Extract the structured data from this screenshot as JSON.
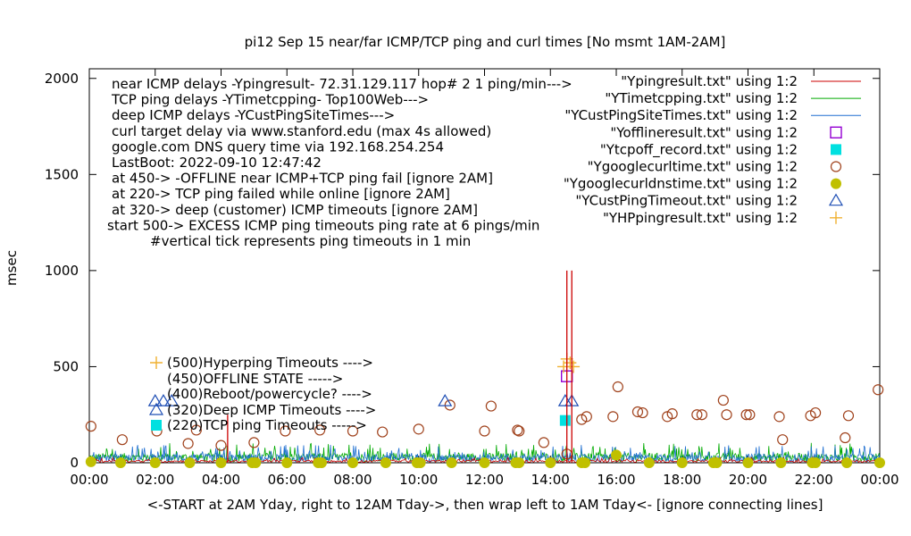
{
  "chart_data": {
    "type": "line",
    "title": "pi12 Sep 15  near/far ICMP/TCP ping and curl times [No msmt 1AM-2AM]",
    "ylabel": "msec",
    "xlabel": "<-START at 2AM Yday, right to 12AM Tday->, then wrap left to 1AM Tday<- [ignore connecting lines]",
    "xlim": [
      0,
      24
    ],
    "ylim": [
      0,
      2050
    ],
    "x_ticks": [
      "00:00",
      "02:00",
      "04:00",
      "06:00",
      "08:00",
      "10:00",
      "12:00",
      "14:00",
      "16:00",
      "18:00",
      "20:00",
      "22:00",
      "00:00"
    ],
    "y_ticks": [
      0,
      500,
      1000,
      1500,
      2000
    ],
    "notes": [
      "near ICMP delays -Ypingresult- 72.31.129.117 hop# 2  1 ping/min--->",
      "TCP ping delays -YTimetcpping- Top100Web--->",
      "deep ICMP delays -YCustPingSiteTimes--->",
      "curl target delay via www.stanford.edu (max 4s allowed)",
      "google.com DNS query time via 192.168.254.254",
      "LastBoot: 2022-09-10 12:47:42",
      "at 450-> -OFFLINE near ICMP+TCP ping fail [ignore 2AM]",
      "at 220-> TCP ping failed while online [ignore 2AM]",
      "at 320-> deep (customer) ICMP timeouts [ignore 2AM]",
      "start 500-> EXCESS ICMP ping timeouts ping rate at 6 pings/min",
      "#vertical tick represents ping timeouts in 1 min"
    ],
    "level_labels": [
      {
        "text": "(500)Hyperping Timeouts ---->",
        "series": "YHPpingresult.txt"
      },
      {
        "text": "(450)OFFLINE STATE ----->",
        "series": ""
      },
      {
        "text": "(400)Reboot/powercycle? ---->",
        "series": ""
      },
      {
        "text": "(320)Deep ICMP Timeouts ---->",
        "series": "YCustPingTimeout.txt"
      },
      {
        "text": "(220)TCP ping Timeouts ----->",
        "series": "Ytcpoff_record.txt"
      }
    ],
    "legend_position": "top-right",
    "legend": [
      {
        "label": "\"Ypingresult.txt\" using 1:2",
        "style": "line",
        "color": "#cc0000"
      },
      {
        "label": "\"YTimetcpping.txt\" using 1:2",
        "style": "line",
        "color": "#00aa00"
      },
      {
        "label": "\"YCustPingSiteTimes.txt\" using 1:2",
        "style": "line",
        "color": "#1f6fd1"
      },
      {
        "label": "\"Yofflineresult.txt\" using 1:2",
        "style": "open-square",
        "color": "#9400d3"
      },
      {
        "label": "\"Ytcpoff_record.txt\" using 1:2",
        "style": "filled-square",
        "color": "#00e0e0"
      },
      {
        "label": "\"Ygooglecurltime.txt\" using 1:2",
        "style": "open-circle",
        "color": "#a0421c"
      },
      {
        "label": "\"Ygooglecurldnstime.txt\" using 1:2",
        "style": "filled-circle",
        "color": "#c0c000"
      },
      {
        "label": "\"YCustPingTimeout.txt\" using 1:2",
        "style": "open-triangle",
        "color": "#1f4fb5"
      },
      {
        "label": "\"YHPpingresult.txt\" using 1:2",
        "style": "plus",
        "color": "#f0b030"
      }
    ],
    "series": [
      {
        "name": "Ygooglecurltime.txt",
        "marker": "open-circle",
        "color": "#a0421c",
        "x": [
          0.05,
          1.0,
          2.05,
          3.0,
          3.25,
          4.0,
          5.0,
          5.95,
          7.0,
          8.0,
          8.9,
          10.0,
          10.95,
          12.0,
          12.2,
          13.0,
          13.05,
          13.8,
          14.5,
          14.95,
          15.1,
          15.9,
          16.05,
          16.65,
          16.8,
          17.55,
          17.7,
          18.45,
          18.6,
          19.25,
          19.35,
          19.95,
          20.05,
          20.95,
          21.05,
          21.9,
          22.05,
          22.95,
          23.05,
          23.95
        ],
        "y": [
          190,
          120,
          165,
          100,
          170,
          90,
          105,
          165,
          170,
          165,
          160,
          175,
          300,
          165,
          295,
          170,
          165,
          105,
          45,
          225,
          240,
          240,
          395,
          265,
          260,
          240,
          255,
          250,
          250,
          325,
          250,
          250,
          250,
          240,
          120,
          245,
          260,
          130,
          245,
          380
        ]
      },
      {
        "name": "Ygooglecurldnstime.txt",
        "marker": "filled-circle",
        "color": "#c0c000",
        "x": [
          0.05,
          0.95,
          2.0,
          3.05,
          4.0,
          4.95,
          5.05,
          6.0,
          6.95,
          7.05,
          8.0,
          9.0,
          9.95,
          10.05,
          11.0,
          12.0,
          12.95,
          13.05,
          14.0,
          14.95,
          15.05,
          16.0,
          17.0,
          18.0,
          18.95,
          19.05,
          20.0,
          21.0,
          21.95,
          22.05,
          23.0,
          24.0
        ],
        "y": [
          5,
          0,
          0,
          0,
          0,
          0,
          0,
          0,
          0,
          0,
          0,
          0,
          0,
          0,
          0,
          0,
          0,
          0,
          0,
          0,
          0,
          40,
          0,
          0,
          0,
          0,
          0,
          0,
          0,
          0,
          0,
          0
        ]
      },
      {
        "name": "YCustPingTimeout.txt",
        "marker": "open-triangle",
        "color": "#1f4fb5",
        "x": [
          2.0,
          2.25,
          2.5,
          10.8,
          14.45,
          14.65
        ],
        "y": [
          320,
          320,
          320,
          320,
          320,
          320
        ]
      },
      {
        "name": "Ytcpoff_record.txt",
        "marker": "filled-square",
        "color": "#00e0e0",
        "x": [
          14.45
        ],
        "y": [
          220
        ]
      },
      {
        "name": "Yofflineresult.txt",
        "marker": "open-square",
        "color": "#9400d3",
        "x": [
          14.5
        ],
        "y": [
          450
        ]
      },
      {
        "name": "YHPpingresult.txt",
        "marker": "plus",
        "color": "#f0b030",
        "x": [
          14.4,
          14.5,
          14.6,
          14.7
        ],
        "y": [
          500,
          540,
          520,
          500
        ]
      },
      {
        "name": "Ypingresult.txt",
        "marker": "spikes",
        "color": "#cc0000",
        "x": [
          14.5,
          14.65,
          4.2
        ],
        "y": [
          1000,
          1000,
          250
        ]
      }
    ]
  }
}
